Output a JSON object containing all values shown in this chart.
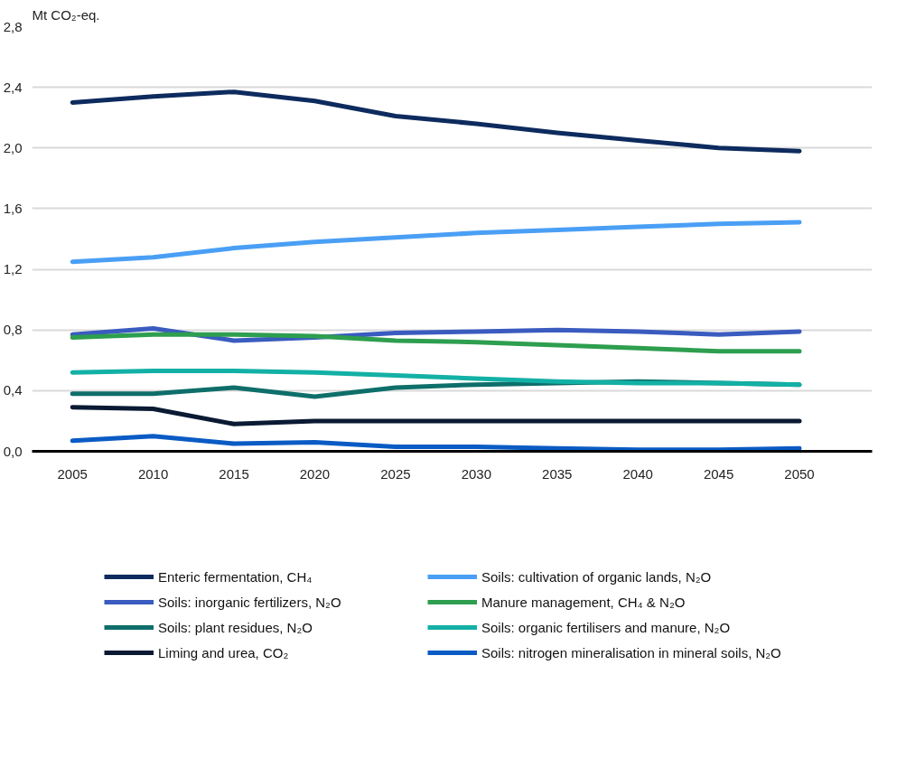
{
  "chart_data": {
    "type": "line",
    "ylabel": "Mt CO₂-eq.",
    "x": [
      2005,
      2010,
      2015,
      2020,
      2025,
      2030,
      2035,
      2040,
      2045,
      2050
    ],
    "xlim": [
      2002.5,
      2054.5
    ],
    "xticks": [
      2005,
      2010,
      2015,
      2020,
      2025,
      2030,
      2035,
      2040,
      2045,
      2050
    ],
    "ylim": [
      0,
      2.8
    ],
    "yticks": [
      {
        "value": 0,
        "label": "0,0"
      },
      {
        "value": 0.4,
        "label": "0,4"
      },
      {
        "value": 0.8,
        "label": "0,8"
      },
      {
        "value": 1.2,
        "label": "1,2"
      },
      {
        "value": 1.6,
        "label": "1,6"
      },
      {
        "value": 2.0,
        "label": "2,0"
      },
      {
        "value": 2.4,
        "label": "2,4"
      },
      {
        "value": 2.8,
        "label": "2,8"
      }
    ],
    "grid": "y",
    "legend": "bottom",
    "marker": "none",
    "line_style": "solid",
    "series": [
      {
        "name": "Enteric fermentation, CH₄",
        "color": "#0d2b5e",
        "values": [
          2.3,
          2.34,
          2.37,
          2.31,
          2.21,
          2.16,
          2.1,
          2.05,
          2.0,
          1.98
        ]
      },
      {
        "name": "Soils: cultivation of organic lands, N₂O",
        "color": "#4a9ff5",
        "values": [
          1.25,
          1.28,
          1.34,
          1.38,
          1.41,
          1.44,
          1.46,
          1.48,
          1.5,
          1.51
        ]
      },
      {
        "name": "Soils: inorganic fertilizers, N₂O",
        "color": "#3a5bbf",
        "values": [
          0.77,
          0.81,
          0.73,
          0.75,
          0.78,
          0.79,
          0.8,
          0.79,
          0.77,
          0.79
        ]
      },
      {
        "name": "Manure management, CH₄ & N₂O",
        "color": "#2e9e4f",
        "values": [
          0.75,
          0.77,
          0.77,
          0.76,
          0.73,
          0.72,
          0.7,
          0.68,
          0.66,
          0.66
        ]
      },
      {
        "name": "Soils: plant residues, N₂O",
        "color": "#0e6e6a",
        "values": [
          0.38,
          0.38,
          0.42,
          0.36,
          0.42,
          0.44,
          0.45,
          0.46,
          0.45,
          0.44
        ]
      },
      {
        "name": "Soils: organic fertilisers and manure, N₂O",
        "color": "#13b0a5",
        "values": [
          0.52,
          0.53,
          0.53,
          0.52,
          0.5,
          0.48,
          0.46,
          0.45,
          0.45,
          0.44
        ]
      },
      {
        "name": "Liming and urea, CO₂",
        "color": "#0b1a33",
        "values": [
          0.29,
          0.28,
          0.18,
          0.2,
          0.2,
          0.2,
          0.2,
          0.2,
          0.2,
          0.2
        ]
      },
      {
        "name": "Soils: nitrogen mineralisation in mineral soils, N₂O",
        "color": "#0a5bc4",
        "values": [
          0.07,
          0.1,
          0.05,
          0.06,
          0.03,
          0.03,
          0.02,
          0.01,
          0.01,
          0.02
        ]
      }
    ]
  }
}
